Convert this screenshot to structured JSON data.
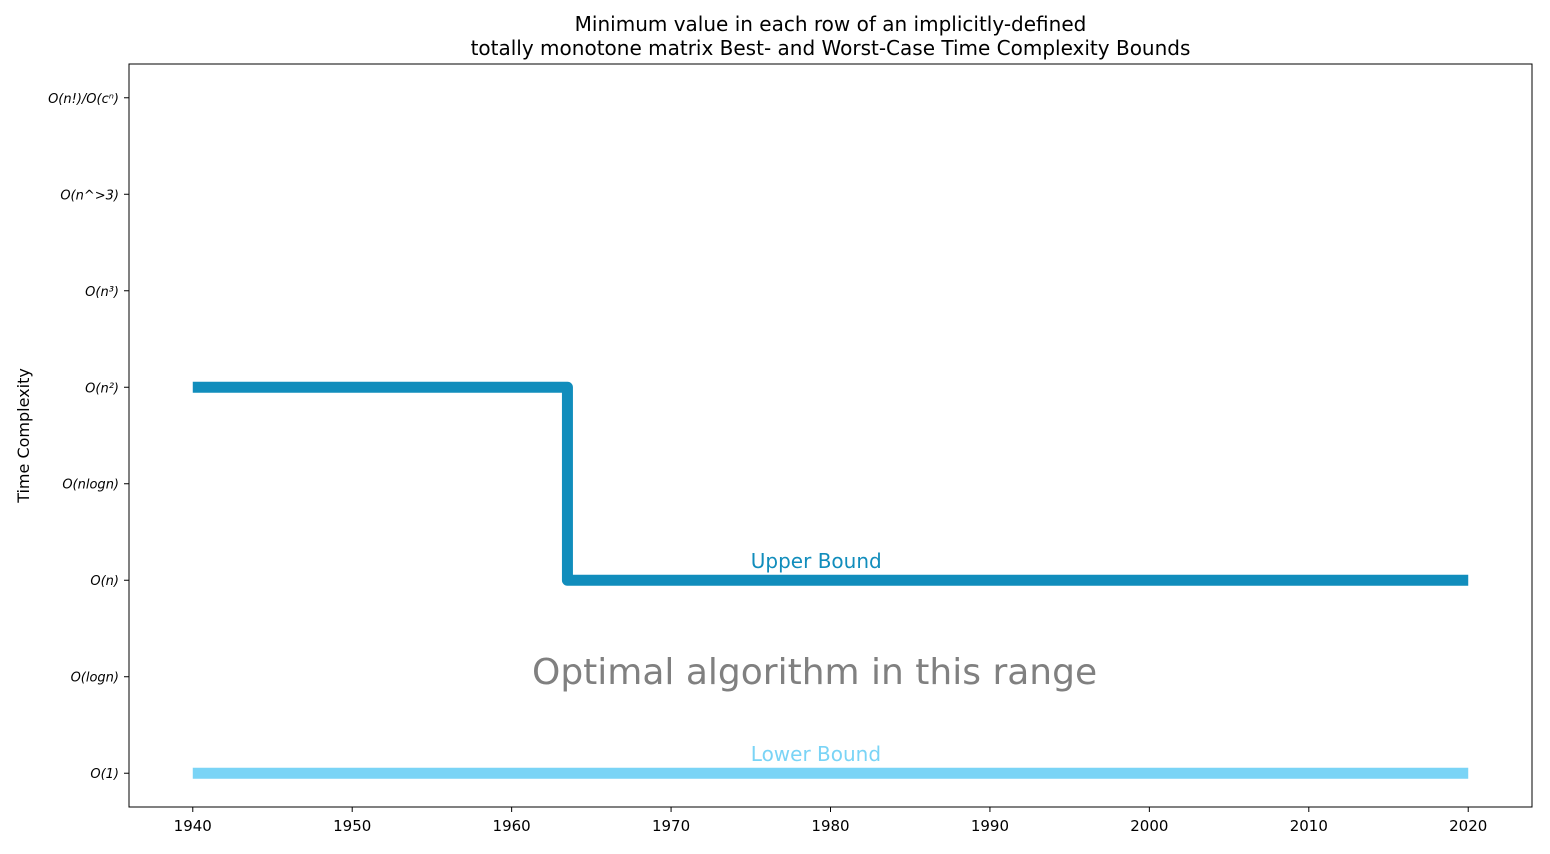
{
  "chart_data": {
    "type": "line",
    "title": [
      "Minimum value in each row of an implicitly-defined",
      "totally monotone matrix Best- and Worst-Case Time Complexity Bounds"
    ],
    "xlabel": "",
    "ylabel": "Time Complexity",
    "xlim": [
      1936,
      2024
    ],
    "ylim": [
      -0.35,
      7.35
    ],
    "x_ticks": [
      1940,
      1950,
      1960,
      1970,
      1980,
      1990,
      2000,
      2010,
      2020
    ],
    "y_ticks": [
      {
        "value": 0,
        "label": "O(1)"
      },
      {
        "value": 1,
        "label": "O(logn)"
      },
      {
        "value": 2,
        "label": "O(n)"
      },
      {
        "value": 3,
        "label": "O(nlogn)"
      },
      {
        "value": 4,
        "label": "O(n²)"
      },
      {
        "value": 5,
        "label": "O(n³)"
      },
      {
        "value": 6,
        "label": "O(n^>3)"
      },
      {
        "value": 7,
        "label": "O(n!)/O(cⁿ)"
      }
    ],
    "grid": false,
    "series": [
      {
        "name": "Upper Bound",
        "color": "#118dbc",
        "step": "post",
        "points": [
          {
            "x": 1940,
            "y": 4
          },
          {
            "x": 1963.5,
            "y": 4
          },
          {
            "x": 1963.5,
            "y": 2
          },
          {
            "x": 2020,
            "y": 2
          }
        ],
        "label_at": {
          "x": 1975,
          "y": 2.2
        }
      },
      {
        "name": "Lower Bound",
        "color": "#7ad4f6",
        "step": "post",
        "points": [
          {
            "x": 1940,
            "y": 0
          },
          {
            "x": 2020,
            "y": 0
          }
        ],
        "label_at": {
          "x": 1975,
          "y": 0.2
        }
      }
    ],
    "annotations": [
      {
        "text": "Optimal algorithm in this range",
        "x": 1979,
        "y": 1.05,
        "color": "#808080"
      }
    ]
  }
}
